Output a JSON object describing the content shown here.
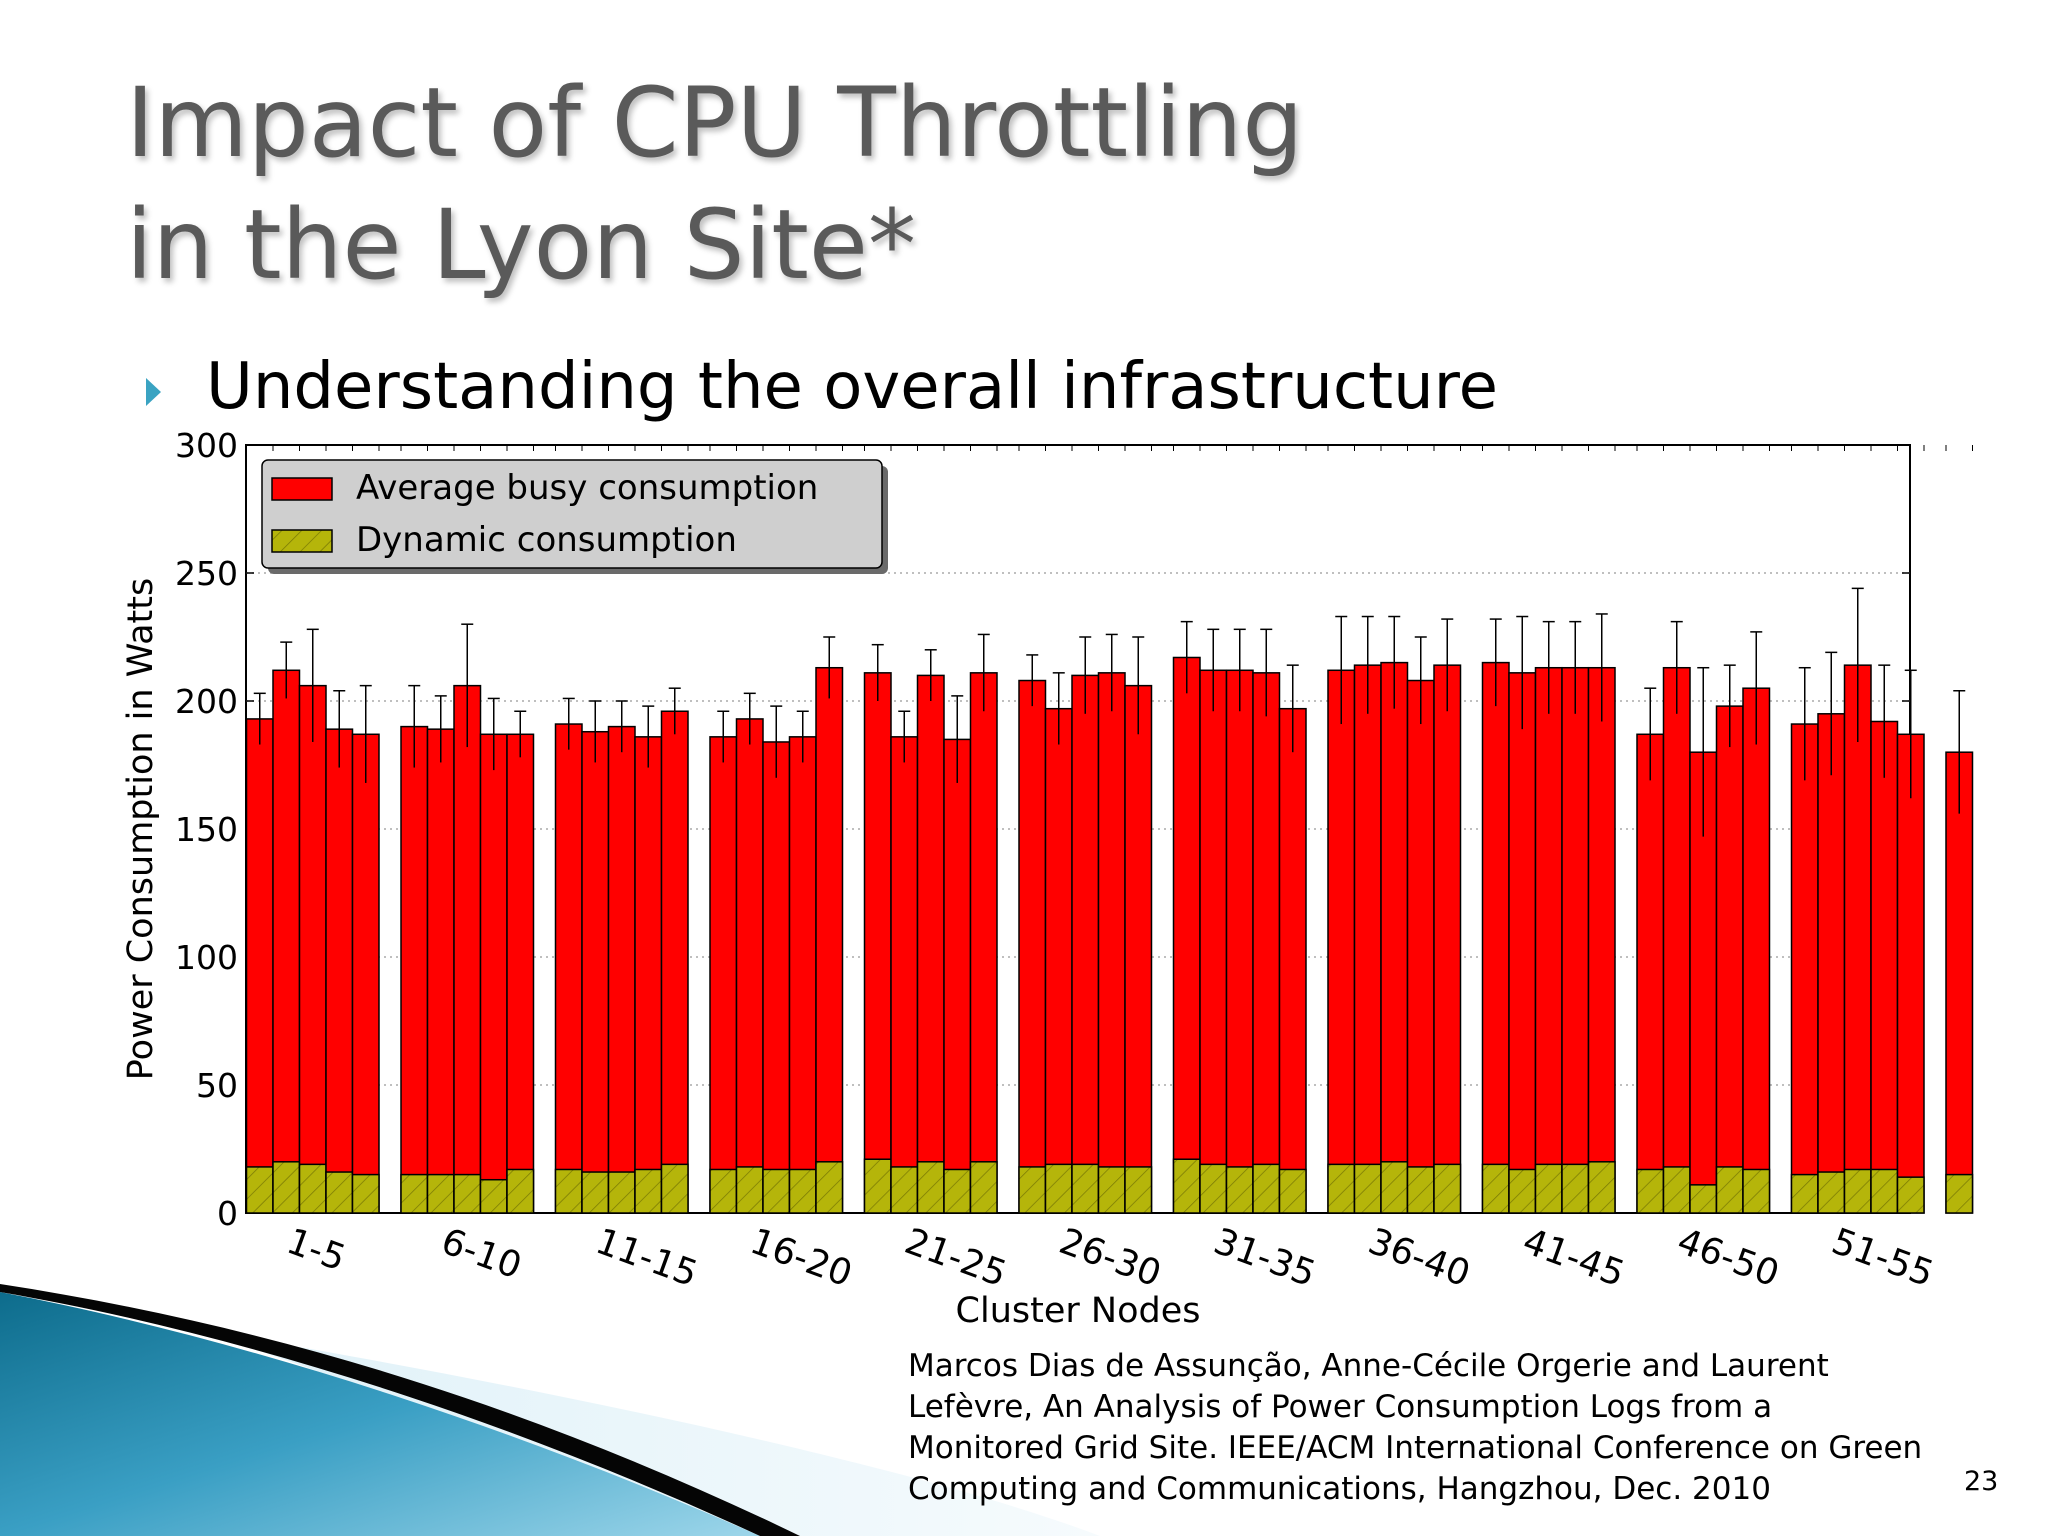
{
  "slide": {
    "title_line1": "Impact of CPU Throttling",
    "title_line2": "in the Lyon Site*",
    "bullet": "Understanding the overall infrastructure",
    "citation_lines": [
      "Marcos Dias de Assunção, Anne-Cécile Orgerie and Laurent",
      "Lefèvre, An Analysis of Power Consumption Logs from a",
      "Monitored Grid Site. IEEE/ACM International Conference on Green",
      "Computing and Communications, Hangzhou, Dec. 2010"
    ],
    "page_number": "23"
  },
  "chart_data": {
    "type": "bar",
    "xlabel": "Cluster Nodes",
    "ylabel": "Power Consumption in Watts",
    "ylim": [
      0,
      300
    ],
    "yticks": [
      0,
      50,
      100,
      150,
      200,
      250,
      300
    ],
    "grid": true,
    "legend_position": "top-left",
    "colors": {
      "busy": "#ff0000",
      "dynamic": "#b5b50a"
    },
    "group_labels": [
      "1-5",
      "6-10",
      "11-15",
      "16-20",
      "21-25",
      "26-30",
      "31-35",
      "36-40",
      "41-45",
      "46-50",
      "51-55"
    ],
    "series": [
      {
        "name": "Average busy consumption",
        "values": [
          193,
          212,
          206,
          189,
          187,
          190,
          189,
          206,
          187,
          187,
          191,
          188,
          190,
          186,
          196,
          186,
          193,
          184,
          186,
          213,
          211,
          186,
          210,
          185,
          211,
          208,
          197,
          210,
          211,
          206,
          217,
          212,
          212,
          211,
          197,
          212,
          214,
          215,
          208,
          214,
          215,
          211,
          213,
          213,
          213,
          187,
          213,
          180,
          198,
          205,
          191,
          195,
          214,
          192,
          187,
          180
        ],
        "errors": [
          10,
          11,
          22,
          15,
          19,
          16,
          13,
          24,
          14,
          9,
          10,
          12,
          10,
          12,
          9,
          10,
          10,
          14,
          10,
          12,
          11,
          10,
          10,
          17,
          15,
          10,
          14,
          15,
          15,
          19,
          14,
          16,
          16,
          17,
          17,
          21,
          19,
          18,
          17,
          18,
          17,
          22,
          18,
          18,
          21,
          18,
          18,
          33,
          16,
          22,
          22,
          24,
          30,
          22,
          25,
          24
        ]
      },
      {
        "name": "Dynamic consumption",
        "values": [
          18,
          20,
          19,
          16,
          15,
          15,
          15,
          15,
          13,
          17,
          17,
          16,
          16,
          17,
          19,
          17,
          18,
          17,
          17,
          20,
          21,
          18,
          20,
          17,
          20,
          18,
          19,
          19,
          18,
          18,
          21,
          19,
          18,
          19,
          17,
          19,
          19,
          20,
          18,
          19,
          19,
          17,
          19,
          19,
          20,
          17,
          18,
          11,
          18,
          17,
          15,
          16,
          17,
          17,
          14,
          15
        ]
      }
    ]
  }
}
